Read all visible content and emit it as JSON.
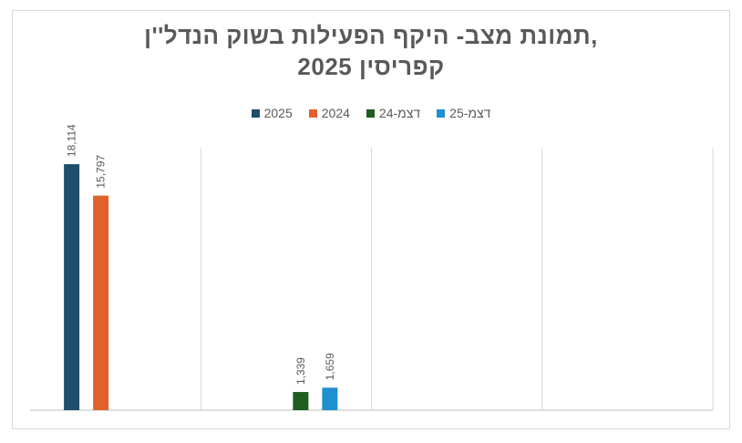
{
  "chart_data": {
    "type": "bar",
    "title": "תמונת מצב- היקף הפעילות בשוק הנדל''ן, קפריסין 2025",
    "title_lines": [
      "תמונת מצב- היקף הפעילות בשוק הנדל''ן,",
      "קפריסין 2025"
    ],
    "categories": [
      "",
      "",
      "",
      ""
    ],
    "series": [
      {
        "name": "2025",
        "color": "#1f4e6b",
        "values": [
          18114,
          null,
          null,
          null
        ],
        "labels": [
          "18,114",
          "",
          "",
          ""
        ]
      },
      {
        "name": "2024",
        "color": "#e0622a",
        "values": [
          15797,
          null,
          null,
          null
        ],
        "labels": [
          "15,797",
          "",
          "",
          ""
        ]
      },
      {
        "name": "דצמ-24",
        "color": "#1e5e20",
        "values": [
          null,
          1339,
          null,
          null
        ],
        "labels": [
          "",
          "1,339",
          "",
          ""
        ]
      },
      {
        "name": "דצמ-25",
        "color": "#1f8fd1",
        "values": [
          null,
          1659,
          null,
          null
        ],
        "labels": [
          "",
          "1,659",
          "",
          ""
        ]
      }
    ],
    "ylim": [
      0,
      20000
    ],
    "grid": "vertical category separators",
    "legend_position": "top"
  }
}
